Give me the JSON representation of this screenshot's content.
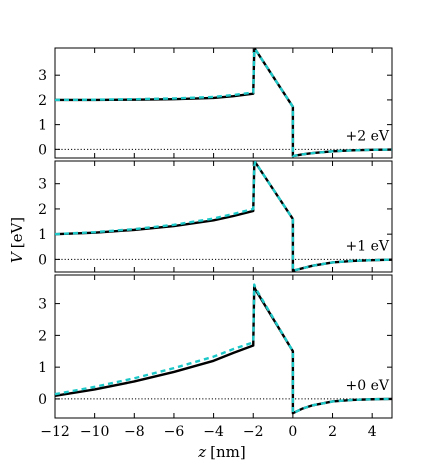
{
  "chart_data": {
    "type": "line",
    "xlabel_var": "z",
    "xlabel_unit": "[nm]",
    "ylabel_var": "V",
    "ylabel_unit": "[eV]",
    "xlim": [
      -12,
      5
    ],
    "x_ticks": [
      -12,
      -10,
      -8,
      -6,
      -4,
      -2,
      0,
      2,
      4
    ],
    "x_tick_labels": [
      "−12",
      "−10",
      "−8",
      "−6",
      "−4",
      "−2",
      "0",
      "2",
      "4"
    ],
    "grid": false,
    "style": {
      "solid_color": "#000000",
      "dashed_color": "#1fc8c8",
      "baseline_style": "dotted"
    },
    "panels": [
      {
        "label": "+2 eV",
        "ylim": [
          -0.35,
          4.1
        ],
        "y_ticks": [
          0,
          1,
          2,
          3
        ],
        "y_tick_labels": [
          "0",
          "1",
          "2",
          "3"
        ],
        "series": [
          {
            "style": "solid",
            "x": [
              -12,
              -10,
              -8,
              -6,
              -4,
              -3,
              -2,
              -1.95,
              -1.9,
              0,
              0,
              0.5,
              1,
              2,
              3,
              4,
              5
            ],
            "y": [
              2.0,
              2.0,
              2.01,
              2.03,
              2.08,
              2.15,
              2.25,
              4.0,
              4.05,
              1.72,
              -0.27,
              -0.2,
              -0.15,
              -0.08,
              -0.04,
              -0.02,
              -0.01
            ]
          },
          {
            "style": "dashed",
            "x": [
              -12,
              -10,
              -8,
              -6,
              -4,
              -3,
              -2,
              -1.95,
              -1.9,
              0,
              0,
              0.5,
              1,
              2,
              3,
              4,
              5
            ],
            "y": [
              2.0,
              2.01,
              2.03,
              2.06,
              2.12,
              2.2,
              2.3,
              4.0,
              4.05,
              1.72,
              -0.27,
              -0.2,
              -0.15,
              -0.08,
              -0.04,
              -0.02,
              -0.01
            ]
          }
        ]
      },
      {
        "label": "+1 eV",
        "ylim": [
          -0.5,
          3.9
        ],
        "y_ticks": [
          0,
          1,
          2,
          3
        ],
        "y_tick_labels": [
          "0",
          "1",
          "2",
          "3"
        ],
        "series": [
          {
            "style": "solid",
            "x": [
              -12,
              -10,
              -8,
              -6,
              -4,
              -3,
              -2,
              -1.95,
              -1.9,
              0,
              0,
              0.5,
              1,
              2,
              3,
              4,
              5
            ],
            "y": [
              1.0,
              1.06,
              1.17,
              1.32,
              1.55,
              1.72,
              1.92,
              3.7,
              3.85,
              1.6,
              -0.45,
              -0.35,
              -0.25,
              -0.12,
              -0.06,
              -0.03,
              -0.01
            ]
          },
          {
            "style": "dashed",
            "x": [
              -12,
              -10,
              -8,
              -6,
              -4,
              -3,
              -2,
              -1.95,
              -1.9,
              0,
              0,
              0.5,
              1,
              2,
              3,
              4,
              5
            ],
            "y": [
              1.0,
              1.08,
              1.2,
              1.37,
              1.62,
              1.8,
              2.0,
              3.7,
              3.85,
              1.6,
              -0.45,
              -0.35,
              -0.25,
              -0.12,
              -0.06,
              -0.03,
              -0.01
            ]
          }
        ]
      },
      {
        "label": "+0 eV",
        "ylim": [
          -0.6,
          3.9
        ],
        "y_ticks": [
          0,
          1,
          2,
          3
        ],
        "y_tick_labels": [
          "0",
          "1",
          "2",
          "3"
        ],
        "series": [
          {
            "style": "solid",
            "x": [
              -12,
              -10,
              -8,
              -6,
              -4,
              -3,
              -2,
              -1.95,
              -1.9,
              0,
              0,
              0.5,
              1,
              2,
              3,
              4,
              5
            ],
            "y": [
              0.1,
              0.3,
              0.55,
              0.85,
              1.2,
              1.45,
              1.68,
              3.55,
              3.45,
              1.5,
              -0.45,
              -0.3,
              -0.2,
              -0.08,
              -0.03,
              -0.01,
              0
            ]
          },
          {
            "style": "dashed",
            "x": [
              -12,
              -10,
              -8,
              -6,
              -4,
              -3,
              -2,
              -1.95,
              -1.9,
              0,
              0,
              0.5,
              1,
              2,
              3,
              4,
              5
            ],
            "y": [
              0.15,
              0.38,
              0.65,
              0.97,
              1.33,
              1.57,
              1.78,
              3.6,
              3.5,
              1.5,
              -0.45,
              -0.3,
              -0.2,
              -0.08,
              -0.03,
              -0.01,
              0
            ]
          }
        ]
      }
    ]
  }
}
